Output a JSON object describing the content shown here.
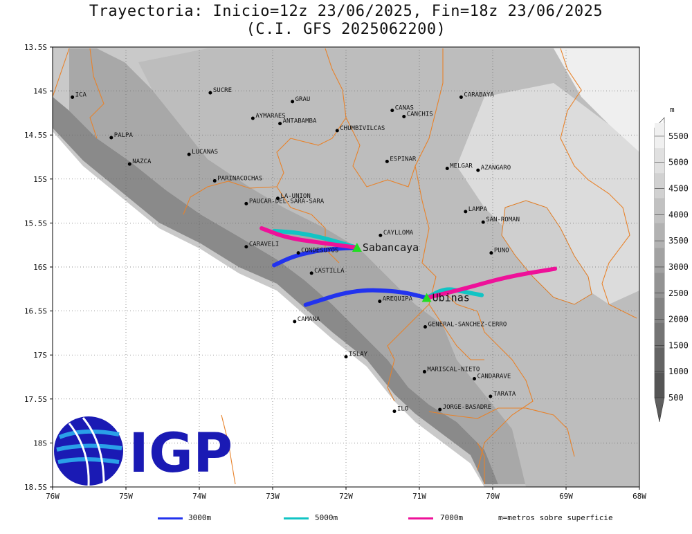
{
  "title": {
    "line1": "Trayectoria: Inicio=12z 23/06/2025, Fin=18z 23/06/2025",
    "line2": "(C.I. GFS 2025062200)"
  },
  "axes": {
    "y_ticks": [
      "13.5S",
      "14S",
      "14.5S",
      "15S",
      "15.5S",
      "16S",
      "16.5S",
      "17S",
      "17.5S",
      "18S",
      "18.5S"
    ],
    "x_ticks": [
      "76W",
      "75W",
      "74W",
      "73W",
      "72W",
      "71W",
      "70W",
      "69W",
      "68W"
    ]
  },
  "colorbar": {
    "unit": "m",
    "labels": [
      "500",
      "1000",
      "1500",
      "2000",
      "2500",
      "3000",
      "3500",
      "4000",
      "4500",
      "5000",
      "5500"
    ]
  },
  "cities": [
    {
      "name": "ICA",
      "lon": -75.73,
      "lat": -14.07
    },
    {
      "name": "SUCRE",
      "lon": -73.85,
      "lat": -14.02
    },
    {
      "name": "GRAU",
      "lon": -72.73,
      "lat": -14.12
    },
    {
      "name": "CANAS",
      "lon": -71.37,
      "lat": -14.22
    },
    {
      "name": "CANCHIS",
      "lon": -71.21,
      "lat": -14.29
    },
    {
      "name": "CARABAYA",
      "lon": -70.43,
      "lat": -14.07
    },
    {
      "name": "AYMARAES",
      "lon": -73.27,
      "lat": -14.31
    },
    {
      "name": "ANTABAMBA",
      "lon": -72.9,
      "lat": -14.37
    },
    {
      "name": "CHUMBIVILCAS",
      "lon": -72.12,
      "lat": -14.45
    },
    {
      "name": "PALPA",
      "lon": -75.2,
      "lat": -14.53
    },
    {
      "name": "LUCANAS",
      "lon": -74.14,
      "lat": -14.72
    },
    {
      "name": "ESPINAR",
      "lon": -71.44,
      "lat": -14.8
    },
    {
      "name": "NAZCA",
      "lon": -74.95,
      "lat": -14.83
    },
    {
      "name": "MELGAR",
      "lon": -70.62,
      "lat": -14.88
    },
    {
      "name": "AZANGARO",
      "lon": -70.2,
      "lat": -14.9
    },
    {
      "name": "PARINACOCHAS",
      "lon": -73.79,
      "lat": -15.02
    },
    {
      "name": "LA-UNION",
      "lon": -72.93,
      "lat": -15.22
    },
    {
      "name": "PAUCAR-DEL-SARA-SARA",
      "lon": -73.36,
      "lat": -15.28
    },
    {
      "name": "LAMPA",
      "lon": -70.37,
      "lat": -15.37
    },
    {
      "name": "SAN-ROMAN",
      "lon": -70.13,
      "lat": -15.49
    },
    {
      "name": "CAYLLOMA",
      "lon": -71.53,
      "lat": -15.64
    },
    {
      "name": "CARAVELI",
      "lon": -73.36,
      "lat": -15.77
    },
    {
      "name": "CONDESUYOS",
      "lon": -72.65,
      "lat": -15.84
    },
    {
      "name": "PUNO",
      "lon": -70.02,
      "lat": -15.84
    },
    {
      "name": "CASTILLA",
      "lon": -72.47,
      "lat": -16.07
    },
    {
      "name": "AREQUIPA",
      "lon": -71.54,
      "lat": -16.39
    },
    {
      "name": "GENERAL-SANCHEZ-CERRO",
      "lon": -70.92,
      "lat": -16.68
    },
    {
      "name": "CAMANA",
      "lon": -72.7,
      "lat": -16.62
    },
    {
      "name": "ISLAY",
      "lon": -72.0,
      "lat": -17.02
    },
    {
      "name": "MARISCAL-NIETO",
      "lon": -70.93,
      "lat": -17.19
    },
    {
      "name": "CANDARAVE",
      "lon": -70.25,
      "lat": -17.27
    },
    {
      "name": "TARATA",
      "lon": -70.03,
      "lat": -17.47
    },
    {
      "name": "ILO",
      "lon": -71.34,
      "lat": -17.64
    },
    {
      "name": "JORGE-BASADRE",
      "lon": -70.72,
      "lat": -17.62
    }
  ],
  "volcanoes": [
    {
      "name": "Sabancaya",
      "lon": -71.85,
      "lat": -15.78
    },
    {
      "name": "Ubinas",
      "lon": -70.9,
      "lat": -16.35
    }
  ],
  "trajectories": [
    {
      "volcano": "Sabancaya",
      "level": "3000m",
      "color": "#2233ee",
      "points": [
        [
          -71.85,
          -15.78
        ],
        [
          -72.3,
          -15.8
        ],
        [
          -72.7,
          -15.87
        ],
        [
          -72.98,
          -15.98
        ]
      ]
    },
    {
      "volcano": "Sabancaya",
      "level": "5000m",
      "color": "#11c4c4",
      "points": [
        [
          -71.85,
          -15.78
        ],
        [
          -72.3,
          -15.67
        ],
        [
          -72.65,
          -15.61
        ],
        [
          -72.98,
          -15.59
        ]
      ]
    },
    {
      "volcano": "Sabancaya",
      "level": "7000m",
      "color": "#ee1199",
      "points": [
        [
          -71.85,
          -15.78
        ],
        [
          -72.3,
          -15.73
        ],
        [
          -72.8,
          -15.67
        ],
        [
          -73.15,
          -15.56
        ]
      ]
    },
    {
      "volcano": "Ubinas",
      "level": "3000m",
      "color": "#2233ee",
      "points": [
        [
          -70.9,
          -16.35
        ],
        [
          -71.3,
          -16.27
        ],
        [
          -71.9,
          -16.26
        ],
        [
          -72.55,
          -16.43
        ]
      ]
    },
    {
      "volcano": "Ubinas",
      "level": "5000m",
      "color": "#11c4c4",
      "points": [
        [
          -70.9,
          -16.35
        ],
        [
          -70.65,
          -16.24
        ],
        [
          -70.4,
          -16.28
        ],
        [
          -70.15,
          -16.32
        ]
      ]
    },
    {
      "volcano": "Ubinas",
      "level": "7000m",
      "color": "#ee1199",
      "points": [
        [
          -70.9,
          -16.35
        ],
        [
          -70.4,
          -16.25
        ],
        [
          -69.8,
          -16.11
        ],
        [
          -69.15,
          -16.02
        ]
      ]
    }
  ],
  "legend": {
    "items": [
      {
        "label": "3000m",
        "color": "#2233ee"
      },
      {
        "label": "5000m",
        "color": "#11c4c4"
      },
      {
        "label": "7000m",
        "color": "#ee1199"
      }
    ],
    "note": "m=metros sobre superficie"
  },
  "logo": {
    "text": "IGP",
    "color": "#1a1ab4",
    "accent": "#2aa0e8"
  }
}
